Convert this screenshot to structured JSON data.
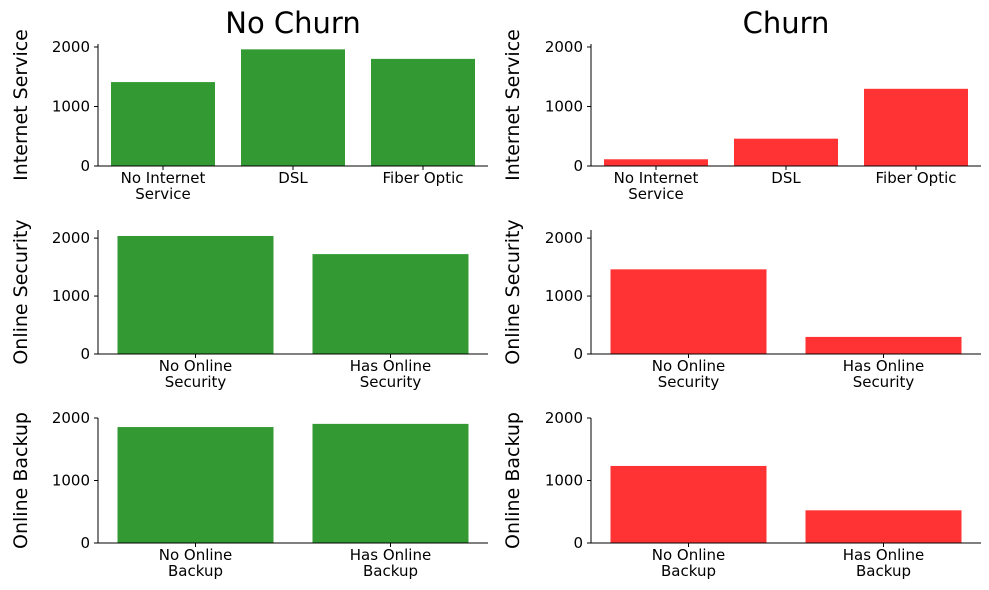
{
  "figure": {
    "col_titles": [
      "No Churn",
      "Churn"
    ],
    "row_labels": [
      "Internet Service",
      "Online Security",
      "Online Backup"
    ],
    "colors": {
      "no_churn": "#339933",
      "churn": "#ff3333"
    }
  },
  "chart_data": [
    {
      "type": "bar",
      "title": "No Churn",
      "ylabel": "Internet Service",
      "categories": [
        "No Internet\nService",
        "DSL",
        "Fiber Optic"
      ],
      "values": [
        1410,
        1960,
        1800
      ],
      "ylim": [
        0,
        2050
      ],
      "yticks": [
        0,
        1000,
        2000
      ],
      "color": "#339933"
    },
    {
      "type": "bar",
      "title": "Churn",
      "ylabel": "Internet Service",
      "categories": [
        "No Internet\nService",
        "DSL",
        "Fiber Optic"
      ],
      "values": [
        113,
        459,
        1297
      ],
      "ylim": [
        0,
        2050
      ],
      "yticks": [
        0,
        1000,
        2000
      ],
      "color": "#ff3333"
    },
    {
      "type": "bar",
      "title": "",
      "ylabel": "Online Security",
      "categories": [
        "No Online\nSecurity",
        "Has Online\nSecurity"
      ],
      "values": [
        2037,
        1724
      ],
      "ylim": [
        0,
        2140
      ],
      "yticks": [
        0,
        1000,
        2000
      ],
      "color": "#339933"
    },
    {
      "type": "bar",
      "title": "",
      "ylabel": "Online Security",
      "categories": [
        "No Online\nSecurity",
        "Has Online\nSecurity"
      ],
      "values": [
        1461,
        295
      ],
      "ylim": [
        0,
        2140
      ],
      "yticks": [
        0,
        1000,
        2000
      ],
      "color": "#ff3333"
    },
    {
      "type": "bar",
      "title": "",
      "ylabel": "Online Backup",
      "categories": [
        "No Online\nBackup",
        "Has Online\nBackup"
      ],
      "values": [
        1855,
        1906
      ],
      "ylim": [
        0,
        2000
      ],
      "yticks": [
        0,
        1000,
        2000
      ],
      "color": "#339933"
    },
    {
      "type": "bar",
      "title": "",
      "ylabel": "Online Backup",
      "categories": [
        "No Online\nBackup",
        "Has Online\nBackup"
      ],
      "values": [
        1233,
        523
      ],
      "ylim": [
        0,
        2000
      ],
      "yticks": [
        0,
        1000,
        2000
      ],
      "color": "#ff3333"
    }
  ]
}
